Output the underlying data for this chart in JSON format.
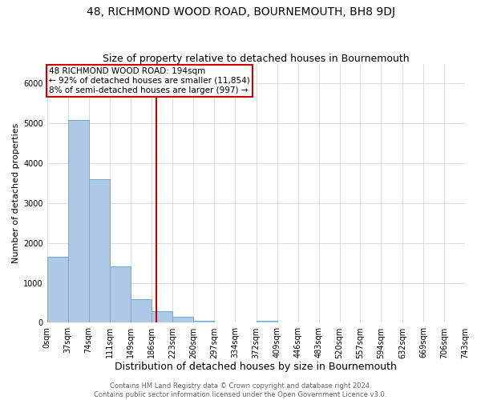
{
  "title": "48, RICHMOND WOOD ROAD, BOURNEMOUTH, BH8 9DJ",
  "subtitle": "Size of property relative to detached houses in Bournemouth",
  "xlabel": "Distribution of detached houses by size in Bournemouth",
  "ylabel": "Number of detached properties",
  "property_line_x": 194,
  "annotation_line1": "48 RICHMOND WOOD ROAD: 194sqm",
  "annotation_line2": "← 92% of detached houses are smaller (11,854)",
  "annotation_line3": "8% of semi-detached houses are larger (997) →",
  "footer_line1": "Contains HM Land Registry data © Crown copyright and database right 2024.",
  "footer_line2": "Contains public sector information licensed under the Open Government Licence v3.0.",
  "bar_color": "#adc9e8",
  "bar_edge_color": "#6aaad4",
  "annotation_box_edge_color": "#cc0000",
  "property_line_color": "#cc0000",
  "ylim": [
    0,
    6500
  ],
  "bin_edges": [
    0,
    37,
    74,
    111,
    149,
    186,
    223,
    260,
    297,
    334,
    372,
    409,
    446,
    483,
    520,
    557,
    594,
    632,
    669,
    706,
    743
  ],
  "bin_counts": [
    1650,
    5080,
    3600,
    1420,
    590,
    290,
    145,
    55,
    0,
    0,
    55,
    0,
    0,
    0,
    0,
    0,
    0,
    0,
    0,
    0
  ],
  "tick_labels": [
    "0sqm",
    "37sqm",
    "74sqm",
    "111sqm",
    "149sqm",
    "186sqm",
    "223sqm",
    "260sqm",
    "297sqm",
    "334sqm",
    "372sqm",
    "409sqm",
    "446sqm",
    "483sqm",
    "520sqm",
    "557sqm",
    "594sqm",
    "632sqm",
    "669sqm",
    "706sqm",
    "743sqm"
  ],
  "title_fontsize": 10,
  "subtitle_fontsize": 9,
  "xlabel_fontsize": 9,
  "ylabel_fontsize": 8,
  "annotation_fontsize": 7.5,
  "tick_fontsize": 7,
  "footer_fontsize": 6
}
